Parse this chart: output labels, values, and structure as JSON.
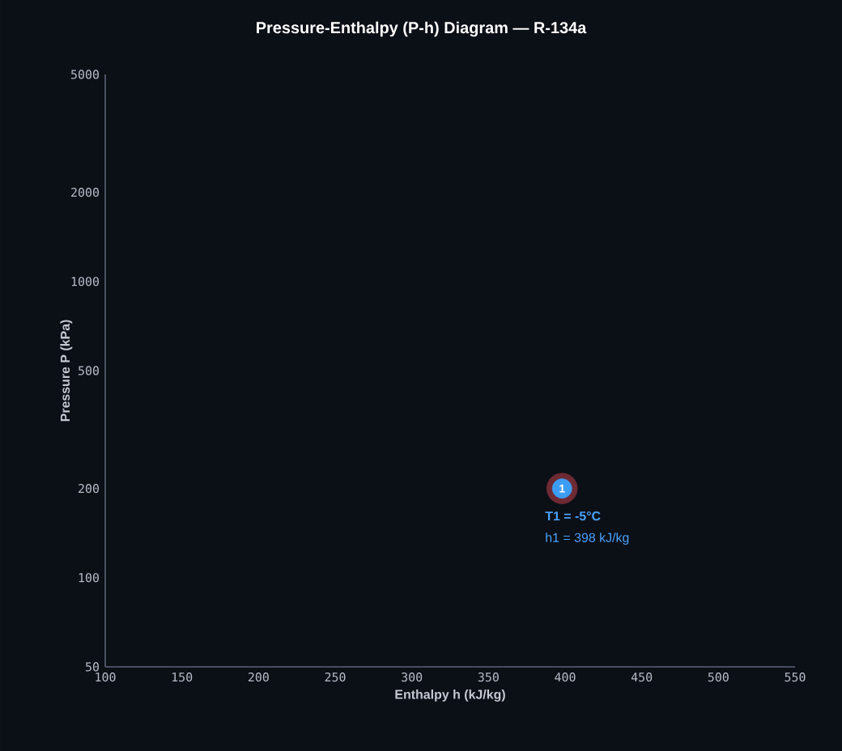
{
  "chart_data": {
    "type": "scatter",
    "title": "Pressure-Enthalpy (P-h) Diagram — R-134a",
    "xlabel": "Enthalpy h (kJ/kg)",
    "ylabel": "Pressure P (kPa)",
    "x": [
      398
    ],
    "series": [
      {
        "color": "#3d9df5",
        "values": [
          200
        ]
      }
    ],
    "marker": "circle",
    "log": "y",
    "xlim": [
      100,
      550
    ],
    "xticks": [
      100,
      150,
      200,
      250,
      300,
      350,
      400,
      450,
      500,
      550
    ],
    "ylim": [
      50,
      5000
    ],
    "yticks": [
      50,
      100,
      200,
      500,
      1000,
      2000,
      5000
    ],
    "annotations": [
      {
        "text": "1",
        "x": 398,
        "y": 200
      },
      "T1 = -5°C",
      "h1 = 398 kJ/kg"
    ]
  }
}
